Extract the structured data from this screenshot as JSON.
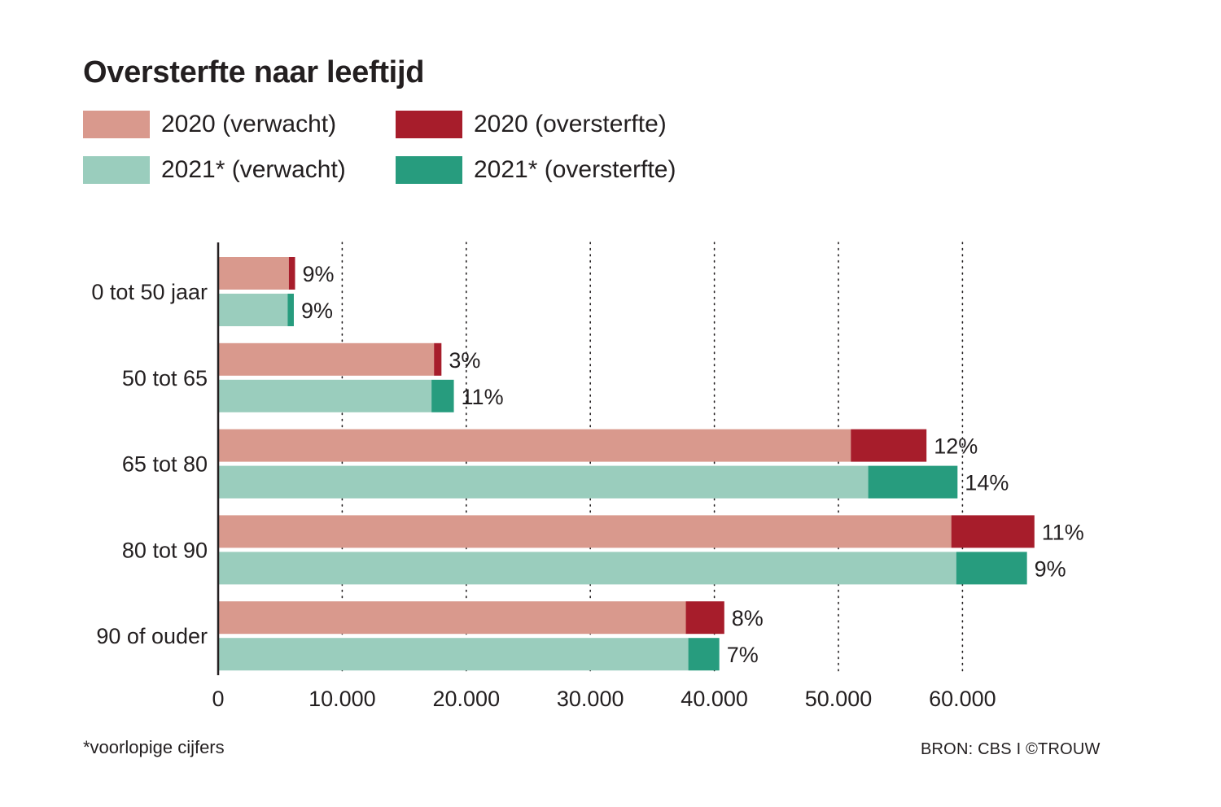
{
  "header": {
    "title": "Oversterfte naar leeftijd"
  },
  "legend": [
    {
      "label": "2020 (verwacht)",
      "color": "#d9998d"
    },
    {
      "label": "2020 (oversterfte)",
      "color": "#a71d2b"
    },
    {
      "label": "2021* (verwacht)",
      "color": "#9acdbd"
    },
    {
      "label": "2021* (oversterfte)",
      "color": "#279c7e"
    }
  ],
  "chart_data": {
    "type": "bar",
    "orientation": "horizontal",
    "stacked": true,
    "title": "Oversterfte naar leeftijd",
    "xlabel": "",
    "ylabel": "",
    "xlim": [
      0,
      70000
    ],
    "xticks": [
      0,
      10000,
      20000,
      30000,
      40000,
      50000,
      60000
    ],
    "xtick_labels": [
      "0",
      "10.000",
      "20.000",
      "30.000",
      "40.000",
      "50.000",
      "60.000"
    ],
    "grid": "vertical dotted",
    "categories": [
      "0 tot 50 jaar",
      "50 tot 65",
      "65 tot 80",
      "80 tot 90",
      "90 of ouder"
    ],
    "groups": [
      {
        "year": "2020",
        "series": [
          {
            "name": "2020 (verwacht)",
            "color": "#d9998d",
            "values": [
              5700,
              17400,
              51000,
              59100,
              37700
            ]
          },
          {
            "name": "2020 (oversterfte)",
            "color": "#a71d2b",
            "values": [
              500,
              600,
              6100,
              6700,
              3100
            ]
          }
        ],
        "labels": [
          "9%",
          "3%",
          "12%",
          "11%",
          "8%"
        ]
      },
      {
        "year": "2021*",
        "series": [
          {
            "name": "2021* (verwacht)",
            "color": "#9acdbd",
            "values": [
              5600,
              17200,
              52400,
              59500,
              37900
            ]
          },
          {
            "name": "2021* (oversterfte)",
            "color": "#279c7e",
            "values": [
              500,
              1800,
              7200,
              5700,
              2500
            ]
          }
        ],
        "labels": [
          "9%",
          "11%",
          "14%",
          "9%",
          "7%"
        ]
      }
    ]
  },
  "footnote": "*voorlopige cijfers",
  "source": "BRON: CBS I ©TROUW"
}
